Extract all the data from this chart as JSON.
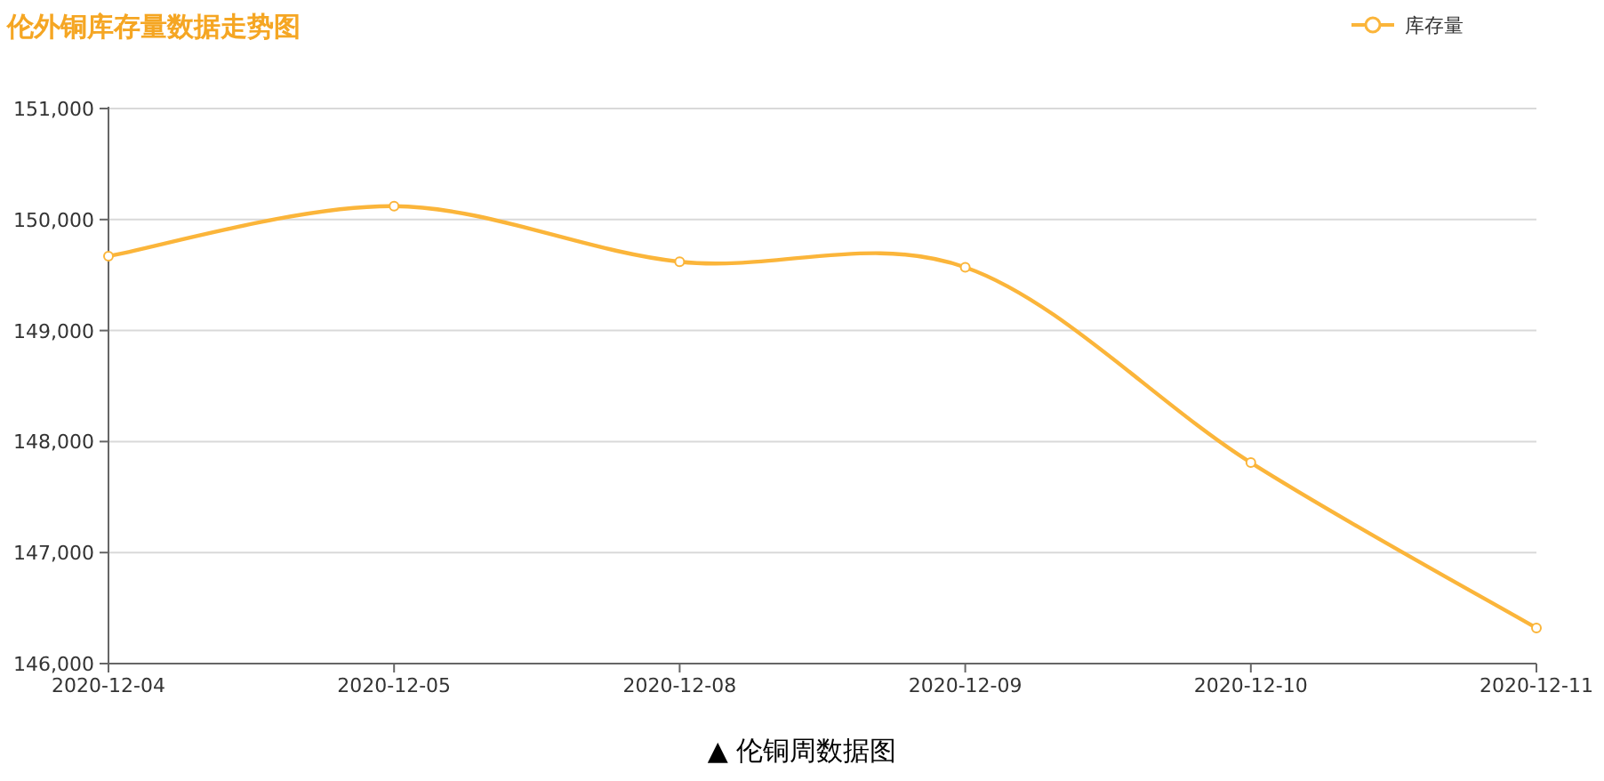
{
  "chart_data": {
    "type": "line",
    "title": "伦外铜库存量数据走势图",
    "categories": [
      "2020-12-04",
      "2020-12-05",
      "2020-12-08",
      "2020-12-09",
      "2020-12-10",
      "2020-12-11"
    ],
    "series": [
      {
        "name": "库存量",
        "color": "#fbb53a",
        "values": [
          149670,
          150120,
          149620,
          149570,
          147810,
          146320
        ]
      }
    ],
    "ylim": [
      146000,
      151000
    ],
    "yticks": [
      {
        "value": 146000,
        "label": "146,000"
      },
      {
        "value": 147000,
        "label": "147,000"
      },
      {
        "value": 148000,
        "label": "148,000"
      },
      {
        "value": 149000,
        "label": "149,000"
      },
      {
        "value": 150000,
        "label": "150,000"
      },
      {
        "value": 151000,
        "label": "151,000"
      }
    ],
    "grid": "y",
    "legend": "top right",
    "marker": "circle",
    "annotations": [
      "▲ 伦铜周数据图"
    ]
  }
}
